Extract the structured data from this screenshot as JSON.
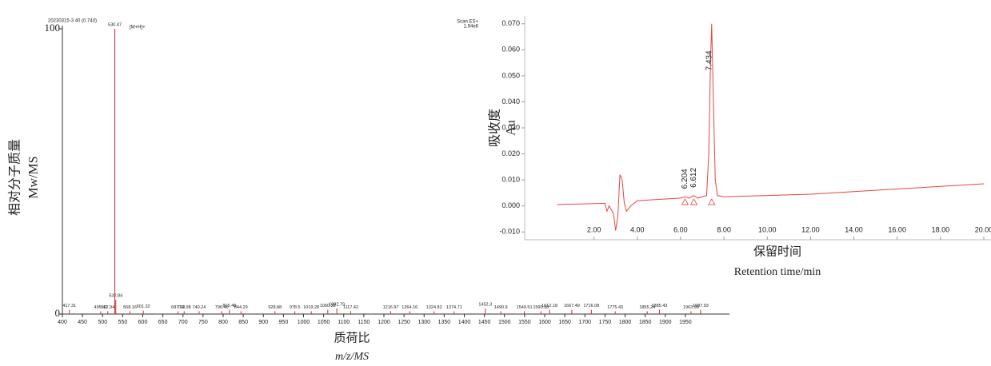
{
  "chart_data": [
    {
      "type": "spectrum",
      "header": "20230315-3 40 (0.740)",
      "scan": "Scan ES+",
      "intensity": "1.94e6",
      "annotation": "[M+H]+",
      "xlabel": "质荷比",
      "xlabel2": "m/z/MS",
      "ylabel": "相对分子质量",
      "ylabel2": "Mw/MS",
      "x": [
        417.31,
        495.41,
        512.94,
        530.47,
        532.84,
        568.16,
        601.32,
        687.74,
        702.98,
        740.24,
        796.46,
        815.48,
        844.29,
        928.88,
        978.5,
        1019.28,
        1060.32,
        1082.79,
        1117.42,
        1216.97,
        1264.16,
        1324.82,
        1374.71,
        1452.3,
        1490.9,
        1549.51,
        1590.58,
        1612.18,
        1667.49,
        1716.08,
        1775.43,
        1855.24,
        1885.43,
        1963.99,
        1987.93
      ],
      "values": [
        1.5,
        1,
        1,
        100,
        5,
        1,
        1.2,
        1,
        1,
        1,
        1,
        1.5,
        1,
        1,
        1,
        1,
        1.5,
        2,
        1,
        1,
        1,
        1,
        1,
        2,
        1,
        1,
        1,
        1.5,
        1.5,
        1.5,
        1,
        1,
        1.5,
        1,
        1.5
      ],
      "color": "#d62828",
      "xlim": [
        400,
        2000
      ],
      "xticks": [
        400,
        450,
        500,
        550,
        600,
        650,
        700,
        750,
        800,
        850,
        900,
        950,
        1000,
        1050,
        1100,
        1150,
        1200,
        1250,
        1300,
        1350,
        1400,
        1450,
        1500,
        1550,
        1600,
        1650,
        1700,
        1750,
        1800,
        1850,
        1900,
        1950
      ],
      "ylim": [
        0,
        100
      ],
      "yticks": [
        0,
        100
      ]
    },
    {
      "type": "line",
      "xlabel": "保留时间",
      "xlabel2": "Retention time/min",
      "ylabel": "吸收度",
      "ylabel2": "Au",
      "x": [
        0.3,
        2.5,
        2.6,
        2.7,
        2.9,
        3.0,
        3.1,
        3.2,
        3.3,
        3.4,
        3.5,
        3.7,
        4.0,
        5.0,
        6.0,
        6.2,
        6.4,
        6.6,
        6.8,
        7.2,
        7.3,
        7.38,
        7.434,
        7.5,
        7.6,
        7.7,
        8.0,
        10.0,
        12.0,
        14.0,
        16.0,
        18.0,
        20.0
      ],
      "values": [
        0.0005,
        0.001,
        -0.002,
        0.0,
        -0.003,
        -0.0095,
        -0.004,
        0.012,
        0.01,
        0.001,
        -0.002,
        0.0,
        0.002,
        0.0025,
        0.003,
        0.0035,
        0.003,
        0.004,
        0.003,
        0.004,
        0.02,
        0.055,
        0.07,
        0.045,
        0.01,
        0.004,
        0.0035,
        0.004,
        0.0045,
        0.0055,
        0.0065,
        0.0075,
        0.0085
      ],
      "color": "#e8453c",
      "peaks": [
        7.434,
        6.204,
        6.612
      ],
      "xlim": [
        -1.2,
        20
      ],
      "xticks": [
        {
          "value": 2,
          "label": "2.00"
        },
        {
          "value": 4,
          "label": "4.00"
        },
        {
          "value": 6,
          "label": "6.00"
        },
        {
          "value": 8,
          "label": "8.00"
        },
        {
          "value": 10,
          "label": "10.00"
        },
        {
          "value": 12,
          "label": "12.00"
        },
        {
          "value": 14,
          "label": "14.00"
        },
        {
          "value": 16,
          "label": "16.00"
        },
        {
          "value": 18,
          "label": "18.00"
        },
        {
          "value": 20,
          "label": "20.00"
        }
      ],
      "ylim": [
        -0.013,
        0.073
      ],
      "yticks": [
        {
          "value": -0.01,
          "label": "-0.010"
        },
        {
          "value": 0,
          "label": "0.000"
        },
        {
          "value": 0.01,
          "label": "0.010"
        },
        {
          "value": 0.02,
          "label": "0.020"
        },
        {
          "value": 0.03,
          "label": "0.030"
        },
        {
          "value": 0.04,
          "label": "0.040"
        },
        {
          "value": 0.05,
          "label": "0.050"
        },
        {
          "value": 0.06,
          "label": "0.060"
        },
        {
          "value": 0.07,
          "label": "0.070"
        }
      ]
    }
  ]
}
